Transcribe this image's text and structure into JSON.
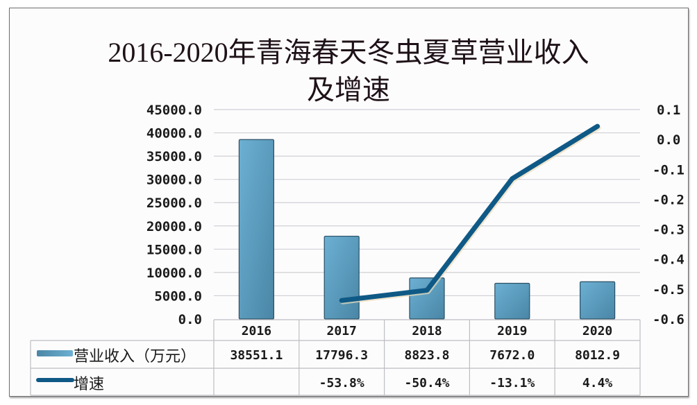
{
  "title": {
    "line1": "2016-2020年青海春天冬虫夏草营业收入",
    "line2": "及增速"
  },
  "colors": {
    "bar_light": "#6cb0d3",
    "bar_dark": "#4a86a6",
    "bar_border": "#2a4f63",
    "line": "#0f5986",
    "grid": "#cfcfd4",
    "table_border": "#bdbdc2"
  },
  "chart_data": {
    "type": "bar+line",
    "title": "2016-2020年青海春天冬虫夏草营业收入及增速",
    "categories": [
      "2016",
      "2017",
      "2018",
      "2019",
      "2020"
    ],
    "series": [
      {
        "name": "营业收入（万元）",
        "type": "bar",
        "axis": "left",
        "values": [
          38551.1,
          17796.3,
          8823.8,
          7672.0,
          8012.9
        ],
        "labels": [
          "38551.1",
          "17796.3",
          "8823.8",
          "7672.0",
          "8012.9"
        ]
      },
      {
        "name": "增速",
        "type": "line",
        "axis": "right",
        "values": [
          null,
          -0.538,
          -0.504,
          -0.131,
          0.044
        ],
        "labels": [
          "",
          "-53.8%",
          "-50.4%",
          "-13.1%",
          "4.4%"
        ]
      }
    ],
    "left_axis": {
      "range": [
        0,
        45000
      ],
      "ticks": [
        "45000.0",
        "40000.0",
        "35000.0",
        "30000.0",
        "25000.0",
        "20000.0",
        "15000.0",
        "10000.0",
        "5000.0",
        "0.0"
      ]
    },
    "right_axis": {
      "range": [
        -0.6,
        0.1
      ],
      "ticks": [
        "0.1",
        "0.0",
        "-0.1",
        "-0.2",
        "-0.3",
        "-0.4",
        "-0.5",
        "-0.6"
      ]
    },
    "grid": true,
    "legend_position": "data-table-bottom",
    "xlabel": "",
    "ylabel": ""
  }
}
